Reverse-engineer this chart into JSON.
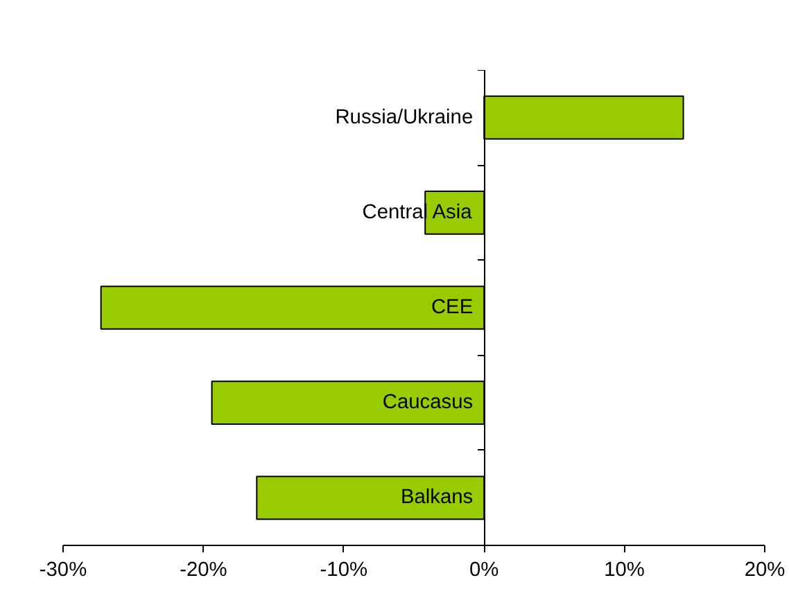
{
  "chart_data": {
    "type": "bar",
    "orientation": "horizontal",
    "categories": [
      "Russia/Ukraine",
      "Central Asia",
      "CEE",
      "Caucasus",
      "Balkans"
    ],
    "values": [
      14.2,
      -4.2,
      -27.3,
      -19.4,
      -16.2
    ],
    "color": "#99cc00",
    "xlim": [
      -30,
      20
    ],
    "xticks": [
      {
        "value": -30,
        "label": "-30%"
      },
      {
        "value": -20,
        "label": "-20%"
      },
      {
        "value": -10,
        "label": "-10%"
      },
      {
        "value": 0,
        "label": "0%"
      },
      {
        "value": 10,
        "label": "10%"
      },
      {
        "value": 20,
        "label": "20%"
      }
    ],
    "grid": false
  }
}
